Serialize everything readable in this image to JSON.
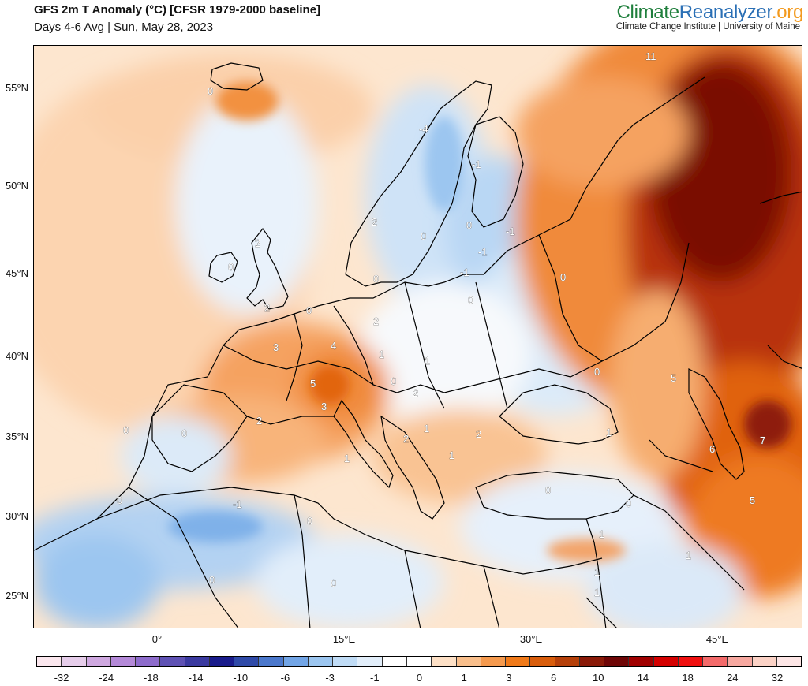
{
  "header": {
    "title": "GFS 2m T Anomaly (°C) [CFSR 1979-2000 baseline]",
    "subtitle": "Days 4-6 Avg | Sun, May 28, 2023"
  },
  "brand": {
    "part1": "Climate",
    "part2": "Reanalyzer",
    "part3": ".org",
    "tagline": "Climate Change Institute | University of Maine",
    "colors": {
      "climate": "#1f7f3c",
      "reanalyzer": "#2a6fb5",
      "org": "#f39a1e"
    }
  },
  "axes": {
    "lat_labels": [
      "55°N",
      "50°N",
      "45°N",
      "40°N",
      "35°N",
      "30°N",
      "25°N"
    ],
    "lon_labels": [
      "0°",
      "15°E",
      "30°E",
      "45°E"
    ]
  },
  "colorbar": {
    "ticks": [
      "-32",
      "-24",
      "-18",
      "-14",
      "-10",
      "-6",
      "-3",
      "-1",
      "0",
      "1",
      "3",
      "6",
      "10",
      "14",
      "18",
      "24",
      "32"
    ],
    "colors": [
      "#fbe7ee",
      "#e6cdea",
      "#cfa8e0",
      "#b489d8",
      "#8e6ccc",
      "#5f52b4",
      "#3b3aa0",
      "#1a1c8c",
      "#2f4aa8",
      "#4b78cc",
      "#72a5e6",
      "#9cc6f0",
      "#c0dcf6",
      "#e2eefa",
      "#ffffff",
      "#ffffff",
      "#fde0c6",
      "#f9bf8c",
      "#f59a4e",
      "#f07a1a",
      "#d85d0c",
      "#b5400a",
      "#8a1a08",
      "#6e0606",
      "#a00000",
      "#d40000",
      "#f01010",
      "#f36a6a",
      "#f7a8a0",
      "#fbd2c6",
      "#fde6e6"
    ]
  },
  "contour_labels": [
    "11",
    "0",
    "-4",
    "-1",
    "2",
    "0",
    "0",
    "-1",
    "2",
    "0",
    "-1",
    "-1",
    "0",
    "0",
    "2",
    "0",
    "0",
    "2",
    "3",
    "4",
    "1",
    "1",
    "0",
    "5",
    "2",
    "3",
    "2",
    "1",
    "2",
    "1",
    "2",
    "1",
    "0",
    "0",
    "0",
    "-1",
    "0",
    "0",
    "0",
    "1",
    "0",
    "5",
    "6",
    "7",
    "1",
    "1",
    "1",
    "5",
    "1",
    "0",
    "0"
  ]
}
